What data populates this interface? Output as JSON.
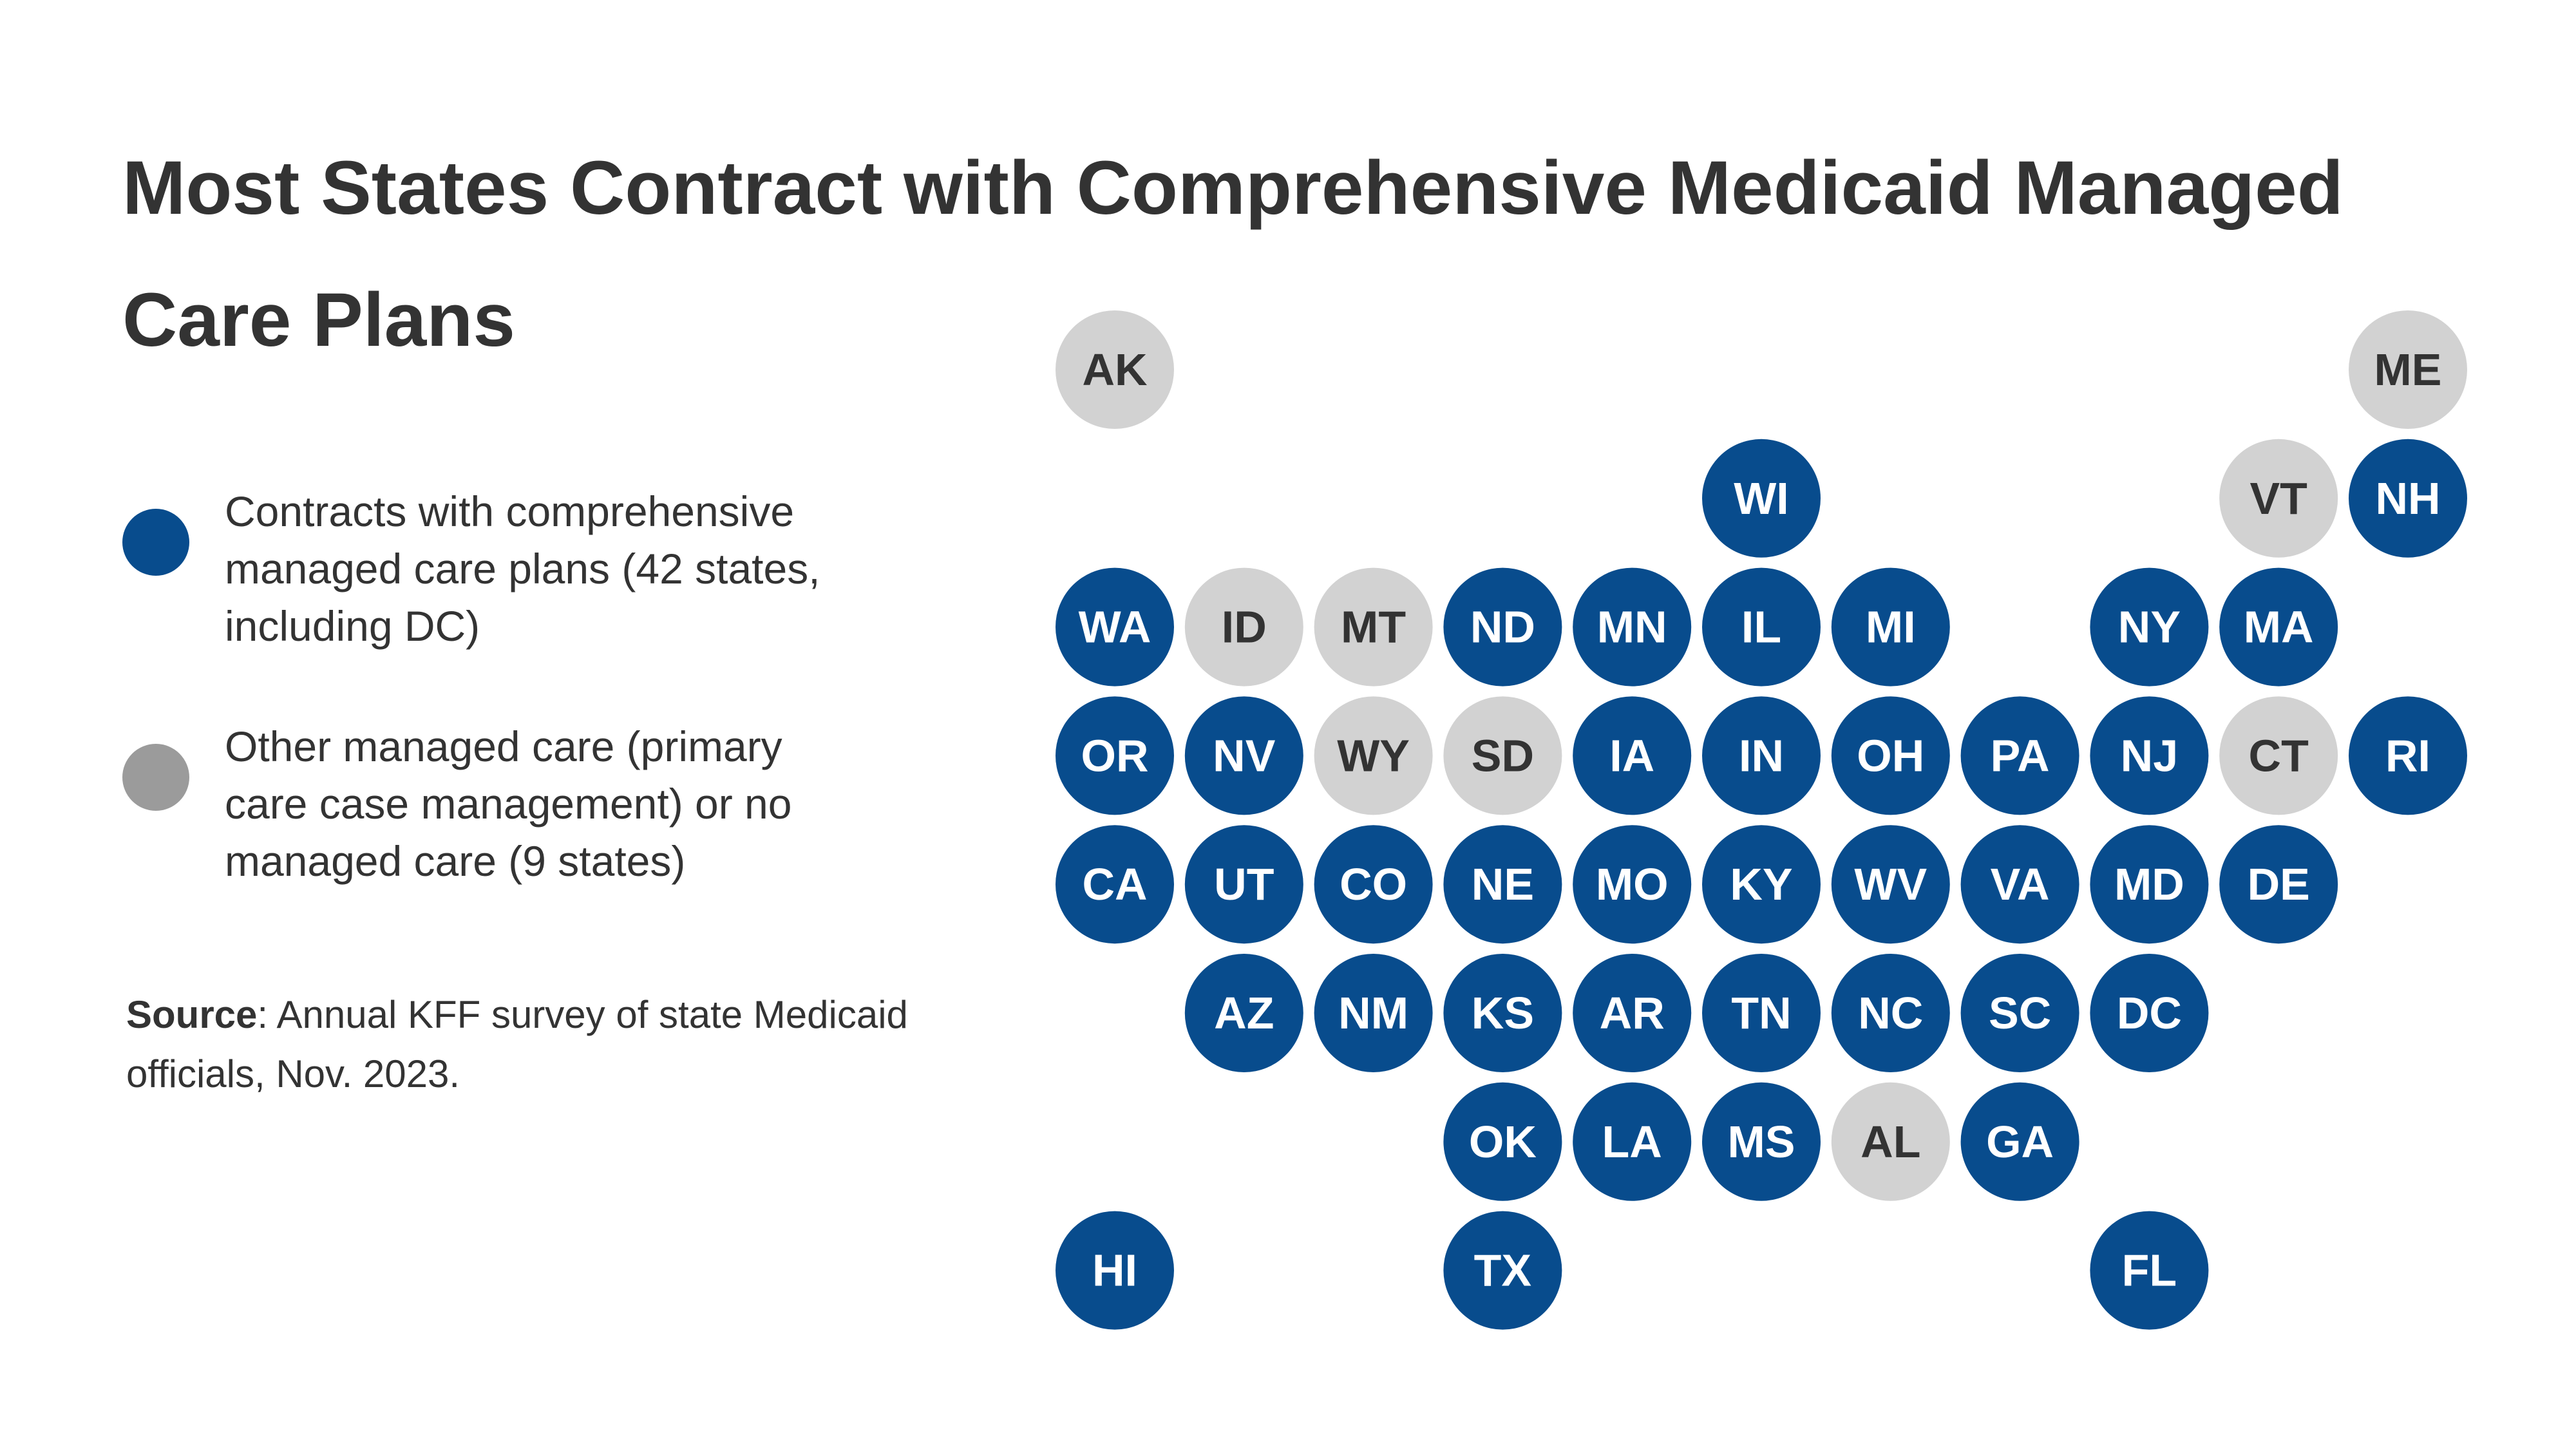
{
  "header": {
    "title": "Most States Contract with Comprehensive Medicaid Managed Care Plans"
  },
  "legend": [
    {
      "label": "Contracts with comprehensive managed care plans (42 states, including DC)",
      "color": "#084c8d"
    },
    {
      "label": "Other managed care (primary care case management) or no managed care (9 states)",
      "color": "#9b9b9b"
    }
  ],
  "source": {
    "label": "Source",
    "text": ": Annual KFF survey of state Medicaid officials, Nov. 2023."
  },
  "grid": {
    "rows": [
      [
        {
          "label": "AK",
          "color": "#d2d2d2"
        },
        null,
        null,
        null,
        null,
        null,
        null,
        null,
        null,
        null,
        {
          "label": "ME",
          "color": "#d2d2d2"
        }
      ],
      [
        null,
        null,
        null,
        null,
        null,
        {
          "label": "WI",
          "color": "#084c8d"
        },
        null,
        null,
        null,
        {
          "label": "VT",
          "color": "#d2d2d2"
        },
        {
          "label": "NH",
          "color": "#084c8d"
        }
      ],
      [
        {
          "label": "WA",
          "color": "#084c8d"
        },
        {
          "label": "ID",
          "color": "#d2d2d2"
        },
        {
          "label": "MT",
          "color": "#d2d2d2"
        },
        {
          "label": "ND",
          "color": "#084c8d"
        },
        {
          "label": "MN",
          "color": "#084c8d"
        },
        {
          "label": "IL",
          "color": "#084c8d"
        },
        {
          "label": "MI",
          "color": "#084c8d"
        },
        null,
        {
          "label": "NY",
          "color": "#084c8d"
        },
        {
          "label": "MA",
          "color": "#084c8d"
        },
        null
      ],
      [
        {
          "label": "OR",
          "color": "#084c8d"
        },
        {
          "label": "NV",
          "color": "#084c8d"
        },
        {
          "label": "WY",
          "color": "#d2d2d2"
        },
        {
          "label": "SD",
          "color": "#d2d2d2"
        },
        {
          "label": "IA",
          "color": "#084c8d"
        },
        {
          "label": "IN",
          "color": "#084c8d"
        },
        {
          "label": "OH",
          "color": "#084c8d"
        },
        {
          "label": "PA",
          "color": "#084c8d"
        },
        {
          "label": "NJ",
          "color": "#084c8d"
        },
        {
          "label": "CT",
          "color": "#d2d2d2"
        },
        {
          "label": "RI",
          "color": "#084c8d"
        }
      ],
      [
        {
          "label": "CA",
          "color": "#084c8d"
        },
        {
          "label": "UT",
          "color": "#084c8d"
        },
        {
          "label": "CO",
          "color": "#084c8d"
        },
        {
          "label": "NE",
          "color": "#084c8d"
        },
        {
          "label": "MO",
          "color": "#084c8d"
        },
        {
          "label": "KY",
          "color": "#084c8d"
        },
        {
          "label": "WV",
          "color": "#084c8d"
        },
        {
          "label": "VA",
          "color": "#084c8d"
        },
        {
          "label": "MD",
          "color": "#084c8d"
        },
        {
          "label": "DE",
          "color": "#084c8d"
        },
        null
      ],
      [
        null,
        {
          "label": "AZ",
          "color": "#084c8d"
        },
        {
          "label": "NM",
          "color": "#084c8d"
        },
        {
          "label": "KS",
          "color": "#084c8d"
        },
        {
          "label": "AR",
          "color": "#084c8d"
        },
        {
          "label": "TN",
          "color": "#084c8d"
        },
        {
          "label": "NC",
          "color": "#084c8d"
        },
        {
          "label": "SC",
          "color": "#084c8d"
        },
        {
          "label": "DC",
          "color": "#084c8d"
        },
        null,
        null
      ],
      [
        null,
        null,
        null,
        {
          "label": "OK",
          "color": "#084c8d"
        },
        {
          "label": "LA",
          "color": "#084c8d"
        },
        {
          "label": "MS",
          "color": "#084c8d"
        },
        {
          "label": "AL",
          "color": "#d2d2d2"
        },
        {
          "label": "GA",
          "color": "#084c8d"
        },
        null,
        null,
        null
      ],
      [
        {
          "label": "HI",
          "color": "#084c8d"
        },
        null,
        null,
        {
          "label": "TX",
          "color": "#084c8d"
        },
        null,
        null,
        null,
        null,
        {
          "label": "FL",
          "color": "#084c8d"
        },
        null,
        null
      ]
    ]
  }
}
